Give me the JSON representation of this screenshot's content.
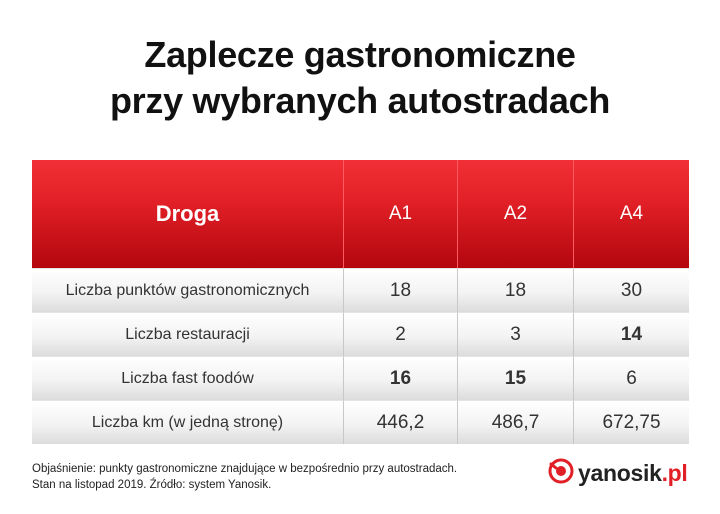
{
  "title_line1": "Zaplecze gastronomiczne",
  "title_line2": "przy wybranych autostradach",
  "chart_data": {
    "type": "table",
    "header": [
      "Droga",
      "A1",
      "A2",
      "A4"
    ],
    "rows": [
      {
        "label": "Liczba punktów gastronomicznych",
        "values": [
          "18",
          "18",
          "30"
        ],
        "bold": [
          false,
          false,
          false
        ]
      },
      {
        "label": "Liczba restauracji",
        "values": [
          "2",
          "3",
          "14"
        ],
        "bold": [
          false,
          false,
          true
        ]
      },
      {
        "label": "Liczba fast foodów",
        "values": [
          "16",
          "15",
          "6"
        ],
        "bold": [
          true,
          true,
          false
        ]
      },
      {
        "label": "Liczba km (w jedną stronę)",
        "values": [
          "446,2",
          "486,7",
          "672,75"
        ],
        "bold": [
          false,
          false,
          false
        ]
      }
    ]
  },
  "note_line1": "Objaśnienie: punkty gastronomiczne znajdujące w bezpośrednio przy autostradach.",
  "note_line2": "Stan na listopad 2019. Źródło: system Yanosik.",
  "logo": {
    "name": "yanosik",
    "suffix": ".pl",
    "accent": "#e11f26"
  },
  "colors": {
    "header_red": "#e11f26",
    "row_gray": "#e6e6e6"
  }
}
